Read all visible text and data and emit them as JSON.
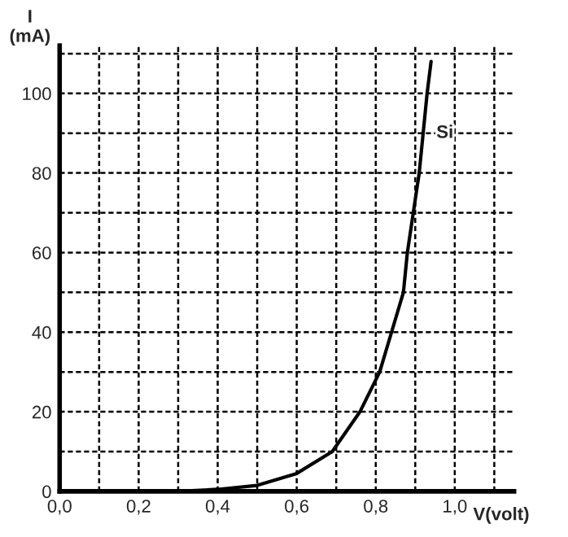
{
  "chart_data": {
    "type": "line",
    "xlabel": "V(volt)",
    "ylabel": "I\n(mA)",
    "annotations": [
      {
        "text": "Si",
        "x": 0.975,
        "y": 90
      }
    ],
    "x": [
      0,
      0.3,
      0.4,
      0.5,
      0.6,
      0.69,
      0.76,
      0.81,
      0.84,
      0.87,
      0.88,
      0.91,
      0.93,
      0.94
    ],
    "series": [
      {
        "color": "#000000",
        "values": [
          0,
          0,
          0.5,
          1.5,
          4.5,
          10,
          20,
          30,
          40,
          50,
          60,
          80,
          100,
          108
        ]
      }
    ],
    "xlim": [
      0,
      1.15
    ],
    "ylim": [
      0,
      112
    ],
    "xticks": [
      {
        "value": 0,
        "label": "0,0"
      },
      {
        "value": 0.1,
        "label": null
      },
      {
        "value": 0.2,
        "label": "0,2"
      },
      {
        "value": 0.3,
        "label": null
      },
      {
        "value": 0.4,
        "label": "0,4"
      },
      {
        "value": 0.5,
        "label": null
      },
      {
        "value": 0.6,
        "label": "0,6"
      },
      {
        "value": 0.7,
        "label": null
      },
      {
        "value": 0.8,
        "label": "0,8"
      },
      {
        "value": 0.9,
        "label": null
      },
      {
        "value": 1.0,
        "label": "1,0"
      },
      {
        "value": 1.1,
        "label": null
      }
    ],
    "yticks": [
      0,
      {
        "value": 10,
        "label": null
      },
      20,
      {
        "value": 30,
        "label": null
      },
      40,
      {
        "value": 50,
        "label": null
      },
      60,
      {
        "value": 70,
        "label": null
      },
      80,
      {
        "value": 90,
        "label": null
      },
      100,
      {
        "value": 110,
        "label": null
      }
    ],
    "grid": true,
    "line_style": "solid",
    "legend": false
  }
}
